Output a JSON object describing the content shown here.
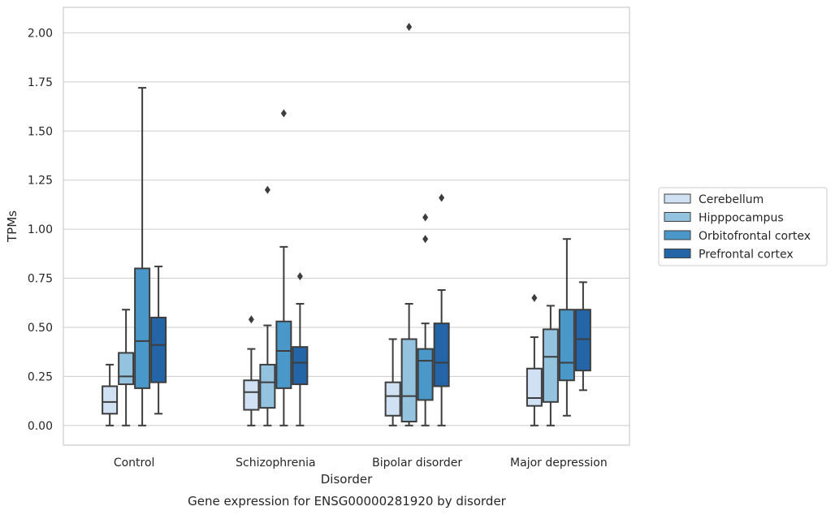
{
  "chart_data": {
    "type": "box",
    "title": "",
    "caption": "Gene expression for ENSG00000281920 by disorder",
    "xlabel": "Disorder",
    "ylabel": "TPMs",
    "ylim": [
      -0.1,
      2.13
    ],
    "yticks": [
      "0.00",
      "0.25",
      "0.50",
      "0.75",
      "1.00",
      "1.25",
      "1.50",
      "1.75",
      "2.00"
    ],
    "grid": "horizontal",
    "legend_position": "right",
    "categories": [
      "Control",
      "Schizophrenia",
      "Bipolar disorder",
      "Major depression"
    ],
    "series": [
      {
        "name": "Cerebellum",
        "color": "#cfe1f2",
        "boxes": [
          {
            "whisker_low": 0.0,
            "q1": 0.06,
            "median": 0.12,
            "q3": 0.2,
            "whisker_high": 0.31,
            "outliers": []
          },
          {
            "whisker_low": 0.0,
            "q1": 0.08,
            "median": 0.17,
            "q3": 0.23,
            "whisker_high": 0.39,
            "outliers": [
              0.54
            ]
          },
          {
            "whisker_low": 0.0,
            "q1": 0.05,
            "median": 0.15,
            "q3": 0.22,
            "whisker_high": 0.44,
            "outliers": []
          },
          {
            "whisker_low": 0.0,
            "q1": 0.1,
            "median": 0.14,
            "q3": 0.29,
            "whisker_high": 0.45,
            "outliers": [
              0.65
            ]
          }
        ]
      },
      {
        "name": "Hipppocampus",
        "color": "#93c3df",
        "boxes": [
          {
            "whisker_low": 0.0,
            "q1": 0.21,
            "median": 0.25,
            "q3": 0.37,
            "whisker_high": 0.59,
            "outliers": []
          },
          {
            "whisker_low": 0.0,
            "q1": 0.09,
            "median": 0.22,
            "q3": 0.31,
            "whisker_high": 0.51,
            "outliers": [
              1.2
            ]
          },
          {
            "whisker_low": 0.0,
            "q1": 0.02,
            "median": 0.15,
            "q3": 0.44,
            "whisker_high": 0.62,
            "outliers": [
              2.03
            ]
          },
          {
            "whisker_low": 0.0,
            "q1": 0.12,
            "median": 0.35,
            "q3": 0.49,
            "whisker_high": 0.61,
            "outliers": []
          }
        ]
      },
      {
        "name": "Orbitofrontal cortex",
        "color": "#4a98c9",
        "boxes": [
          {
            "whisker_low": 0.0,
            "q1": 0.19,
            "median": 0.43,
            "q3": 0.8,
            "whisker_high": 1.72,
            "outliers": []
          },
          {
            "whisker_low": 0.0,
            "q1": 0.19,
            "median": 0.38,
            "q3": 0.53,
            "whisker_high": 0.91,
            "outliers": [
              1.59
            ]
          },
          {
            "whisker_low": 0.0,
            "q1": 0.13,
            "median": 0.33,
            "q3": 0.39,
            "whisker_high": 0.52,
            "outliers": [
              0.95,
              1.06
            ]
          },
          {
            "whisker_low": 0.05,
            "q1": 0.23,
            "median": 0.32,
            "q3": 0.59,
            "whisker_high": 0.95,
            "outliers": []
          }
        ]
      },
      {
        "name": "Prefrontal cortex",
        "color": "#2365a6",
        "boxes": [
          {
            "whisker_low": 0.06,
            "q1": 0.22,
            "median": 0.41,
            "q3": 0.55,
            "whisker_high": 0.81,
            "outliers": []
          },
          {
            "whisker_low": 0.0,
            "q1": 0.21,
            "median": 0.32,
            "q3": 0.4,
            "whisker_high": 0.62,
            "outliers": [
              0.76
            ]
          },
          {
            "whisker_low": 0.0,
            "q1": 0.2,
            "median": 0.32,
            "q3": 0.52,
            "whisker_high": 0.69,
            "outliers": [
              1.16
            ]
          },
          {
            "whisker_low": 0.18,
            "q1": 0.28,
            "median": 0.44,
            "q3": 0.59,
            "whisker_high": 0.73,
            "outliers": []
          }
        ]
      }
    ]
  }
}
